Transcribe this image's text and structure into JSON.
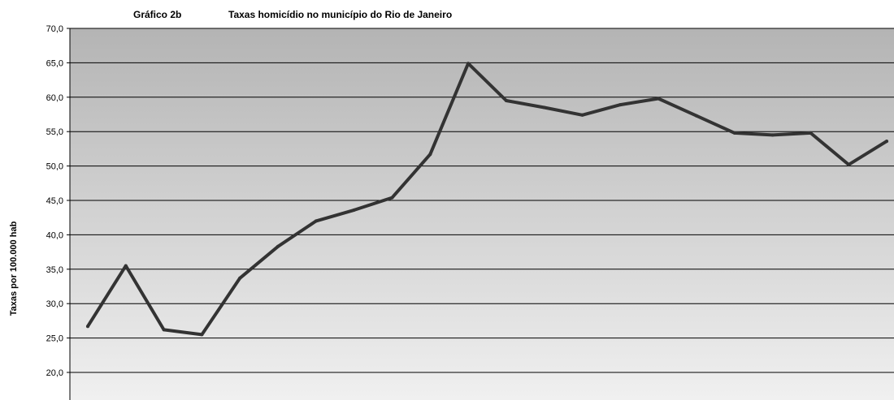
{
  "chart_data": {
    "type": "line",
    "title_label": "Gráfico 2b",
    "title": "Taxas homicídio no município do Rio de Janeiro",
    "xlabel": "",
    "ylabel": "Taxas por 100.000 hab",
    "ylim": [
      20,
      70
    ],
    "y_ticks": [
      "70,0",
      "65,0",
      "60,0",
      "55,0",
      "50,0",
      "45,0",
      "40,0",
      "35,0",
      "30,0",
      "25,0",
      "20,0"
    ],
    "grid": true,
    "background_gradient": [
      "#b4b4b4",
      "#f0f0f0"
    ],
    "line_color": "#333333",
    "series": [
      {
        "values": [
          26.7,
          35.5,
          26.2,
          25.5,
          33.7,
          38.3,
          42.0,
          43.6,
          45.4,
          51.7,
          64.9,
          59.5,
          58.5,
          57.4,
          58.9,
          59.8,
          57.3,
          54.8,
          54.5,
          54.8,
          50.2,
          53.6
        ]
      }
    ]
  }
}
